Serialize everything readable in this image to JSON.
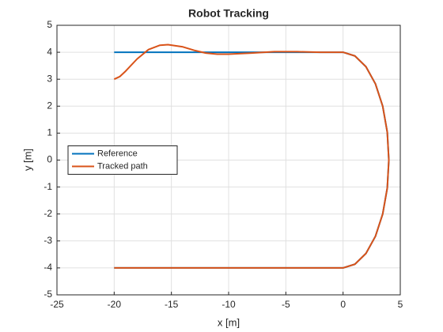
{
  "chart_data": {
    "type": "line",
    "title": "Robot Tracking",
    "xlabel": "x [m]",
    "ylabel": "y [m]",
    "xlim": [
      -25,
      5
    ],
    "xticks": [
      -25,
      -20,
      -15,
      -10,
      -5,
      0,
      5
    ],
    "ylim": [
      -5,
      5
    ],
    "yticks": [
      -5,
      -4,
      -3,
      -2,
      -1,
      0,
      1,
      2,
      3,
      4,
      5
    ],
    "grid": true,
    "legend_position": "west",
    "series": [
      {
        "name": "Reference",
        "color": "#0072bd",
        "x": [
          -20,
          0,
          1.035,
          2,
          2.828,
          3.464,
          3.864,
          4,
          3.864,
          3.464,
          2.828,
          2,
          1.035,
          0,
          -20
        ],
        "values": [
          4,
          4,
          3.864,
          3.464,
          2.828,
          2,
          1.035,
          0,
          -1.035,
          -2,
          -2.828,
          -3.464,
          -3.864,
          -4,
          -4
        ]
      },
      {
        "name": "Tracked path",
        "color": "#d95319",
        "x": [
          -20,
          -19.5,
          -19,
          -18,
          -17,
          -16,
          -15.3,
          -14,
          -13,
          -12,
          -11,
          -10,
          -8,
          -6,
          -4,
          -2,
          0,
          1.035,
          2,
          2.828,
          3.464,
          3.864,
          4,
          3.864,
          3.464,
          2.828,
          2,
          1.035,
          0,
          -10,
          -20
        ],
        "values": [
          3,
          3.1,
          3.3,
          3.75,
          4.1,
          4.26,
          4.28,
          4.2,
          4.07,
          3.97,
          3.93,
          3.93,
          3.97,
          4.02,
          4.02,
          4,
          4,
          3.864,
          3.464,
          2.828,
          2,
          1.035,
          0,
          -1.035,
          -2,
          -2.828,
          -3.464,
          -3.864,
          -4,
          -4,
          -4
        ]
      }
    ]
  }
}
